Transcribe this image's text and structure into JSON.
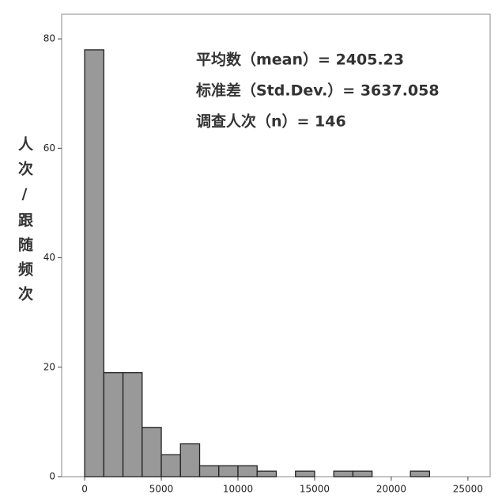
{
  "chart_data": {
    "type": "histogram",
    "ylabel": "人次/跟随频次",
    "annotations": [
      "平均数（mean）= 2405.23",
      "标准差（Std.Dev.）= 3637.058",
      "调查人次（n）= 146"
    ],
    "bins": [
      0,
      1250,
      2500,
      3750,
      5000,
      6250,
      7500,
      8750,
      10000,
      11250,
      12500,
      13750,
      15000,
      16250,
      17500,
      18750,
      20000,
      21250,
      22500
    ],
    "values": [
      78,
      19,
      19,
      9,
      4,
      6,
      2,
      2,
      2,
      1,
      0,
      1,
      0,
      1,
      1,
      0,
      0,
      1
    ],
    "color": "#999999",
    "xlim": [
      -1500,
      26450
    ],
    "ylim": [
      0,
      84.5
    ],
    "xticks": [
      0,
      5000,
      10000,
      15000,
      20000,
      25000
    ],
    "yticks": [
      0,
      20,
      40,
      60,
      80
    ]
  }
}
